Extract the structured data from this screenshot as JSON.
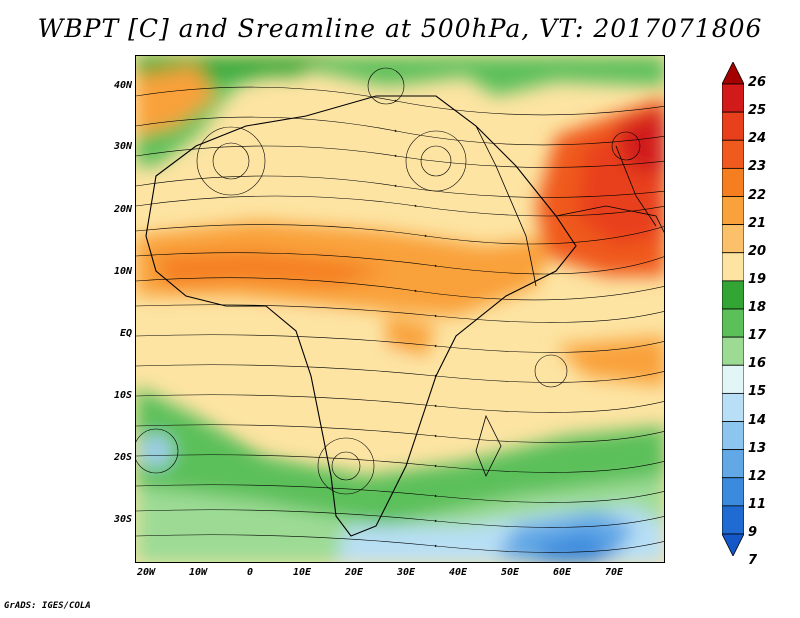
{
  "title": "WBPT [C] and Sreamline at 500hPa, VT: 2017071806",
  "lat_labels": [
    "40N",
    "30N",
    "20N",
    "10N",
    "EQ",
    "10S",
    "20S",
    "30S"
  ],
  "lon_labels": [
    "20W",
    "10W",
    "0",
    "10E",
    "20E",
    "30E",
    "40E",
    "50E",
    "60E",
    "70E"
  ],
  "colorbar": {
    "labels": [
      "26",
      "25",
      "24",
      "23",
      "22",
      "21",
      "20",
      "19",
      "18",
      "17",
      "16",
      "15",
      "14",
      "13",
      "12",
      "11",
      "9",
      "7"
    ],
    "colors": [
      "#a50000",
      "#d21a1a",
      "#e8401c",
      "#f05a1e",
      "#f57f20",
      "#f9a13a",
      "#fbc06a",
      "#fde4a3",
      "#33a534",
      "#5cc05a",
      "#9ddb95",
      "#e3f6f7",
      "#b8dff5",
      "#8cc6ee",
      "#62a8e6",
      "#3a8ade",
      "#1f6bd2",
      "#1457c8"
    ]
  },
  "credit": "GrADS: IGES/COLA"
}
